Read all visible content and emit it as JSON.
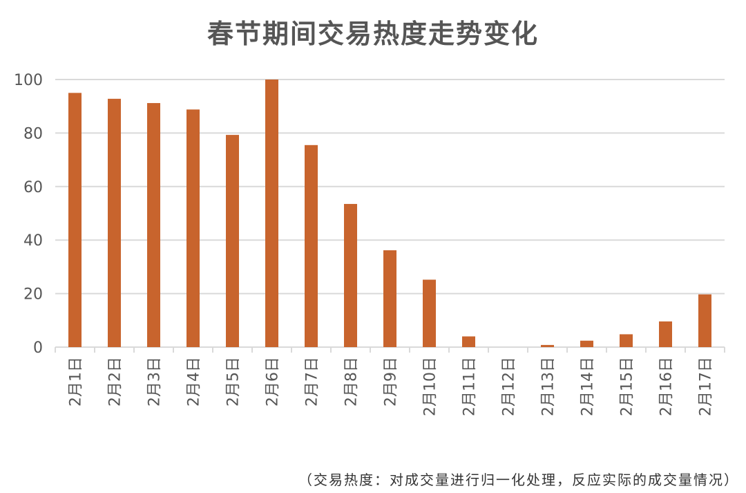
{
  "chart_data": {
    "type": "bar",
    "title": "春节期间交易热度走势变化",
    "note": "（交易热度：对成交量进行归一化处理，反应实际的成交量情况）",
    "categories": [
      "2月1日",
      "2月2日",
      "2月3日",
      "2月4日",
      "2月5日",
      "2月6日",
      "2月7日",
      "2月8日",
      "2月9日",
      "2月10日",
      "2月11日",
      "2月12日",
      "2月13日",
      "2月14日",
      "2月15日",
      "2月16日",
      "2月17日"
    ],
    "values": [
      95,
      92.8,
      91.2,
      88.8,
      79.3,
      100,
      75.5,
      53.5,
      36.2,
      25.2,
      4,
      0,
      0.8,
      2.4,
      4.8,
      9.6,
      19.7
    ],
    "ylim": [
      0,
      100
    ],
    "yticks": [
      0,
      20,
      40,
      60,
      80,
      100
    ],
    "grid": true,
    "bar_color": "#C8642D",
    "xlabel": "",
    "ylabel": ""
  }
}
